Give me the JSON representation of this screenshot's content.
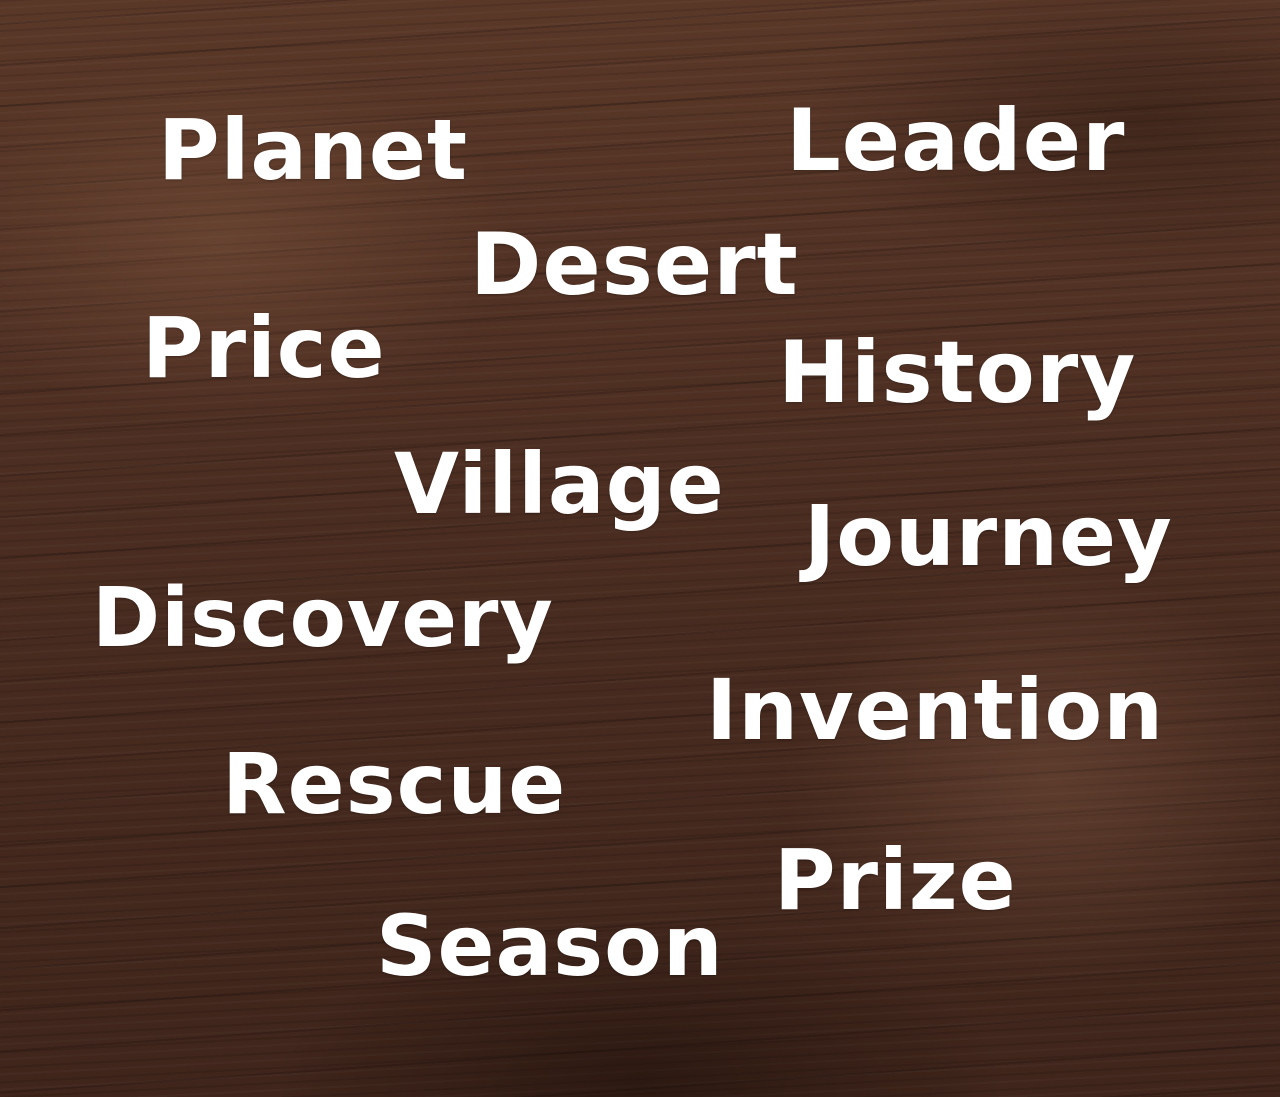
{
  "words": {
    "planet": "Planet",
    "leader": "Leader",
    "desert": "Desert",
    "price": "Price",
    "history": "History",
    "village": "Village",
    "journey": "Journey",
    "discovery": "Discovery",
    "invention": "Invention",
    "rescue": "Rescue",
    "prize": "Prize",
    "season": "Season"
  },
  "colors": {
    "text": "#ffffff",
    "background": "#4a2c20"
  }
}
